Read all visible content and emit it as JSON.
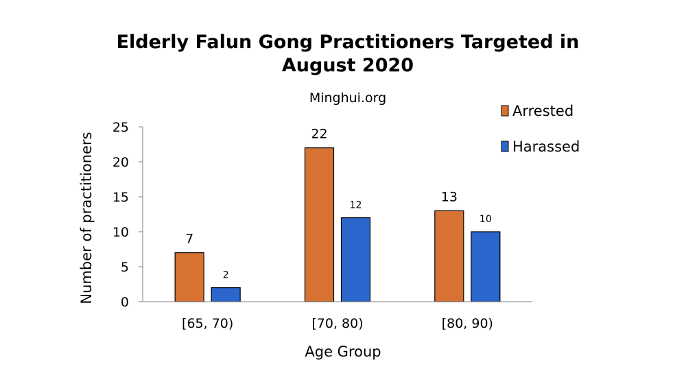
{
  "chart_data": {
    "type": "bar",
    "title_line1": "Elderly Falun Gong Practitioners Targeted in",
    "title_line2": "August 2020",
    "subtitle": "Minghui.org",
    "xlabel": "Age Group",
    "ylabel": "Number of practitioners",
    "ylim": [
      0,
      25
    ],
    "yticks": [
      "0",
      "5",
      "10",
      "15",
      "20",
      "25"
    ],
    "categories": [
      "[65, 70)",
      "[70, 80)",
      "[80, 90)"
    ],
    "series": [
      {
        "name": "Arrested",
        "color": "#d77232",
        "values": [
          7,
          22,
          13
        ]
      },
      {
        "name": "Harassed",
        "color": "#2b66cc",
        "values": [
          2,
          12,
          10
        ]
      }
    ],
    "grid": false,
    "legend": "top-right",
    "data_labels": true
  }
}
